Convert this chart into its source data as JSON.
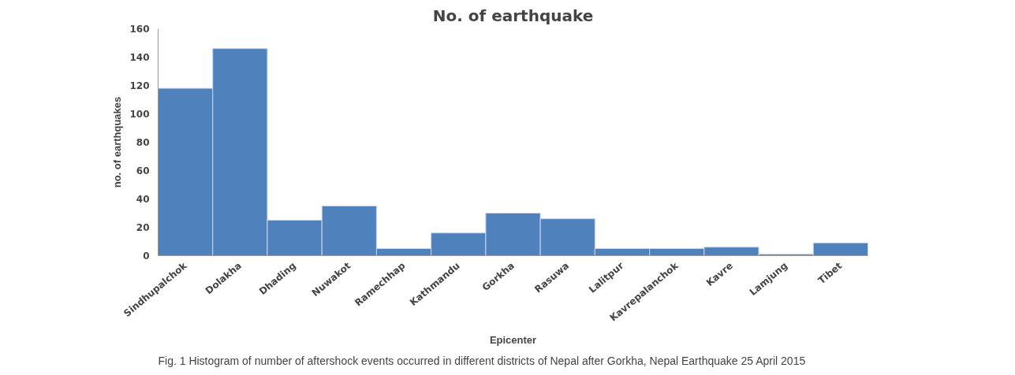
{
  "chart_data": {
    "type": "bar",
    "title": "No. of earthquake",
    "xlabel": "Epicenter",
    "ylabel": "no. of earthquakes",
    "categories": [
      "Sindhupalchok",
      "Dolakha",
      "Dhading",
      "Nuwakot",
      "Ramechhap",
      "Kathmandu",
      "Gorkha",
      "Rasuwa",
      "Lalitpur",
      "Kavrepalanchok",
      "Kavre",
      "Lamjung",
      "Tibet"
    ],
    "values": [
      118,
      146,
      25,
      35,
      5,
      16,
      30,
      26,
      5,
      5,
      6,
      1,
      9
    ],
    "color": "#4f81bd",
    "ylim": [
      0,
      160
    ],
    "yticks": [
      0,
      20,
      40,
      60,
      80,
      100,
      120,
      140,
      160
    ],
    "grid": false,
    "annotations": [
      "Fig. 1 Histogram of number of aftershock events occurred in different districts of Nepal after Gorkha, Nepal Earthquake 25 April 2015"
    ]
  }
}
